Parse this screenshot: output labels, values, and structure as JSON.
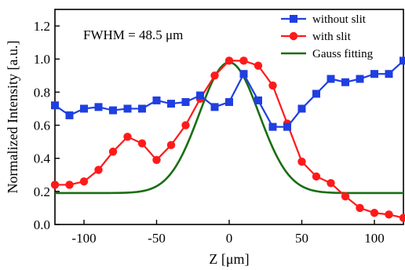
{
  "chart_data": {
    "type": "line",
    "xlabel": "Z [μm]",
    "ylabel": "Normalized Intensity [a.u.]",
    "xlim": [
      -120,
      120
    ],
    "ylim": [
      0.0,
      1.3
    ],
    "x_ticks": [
      -100,
      -50,
      0,
      50,
      100
    ],
    "x_tick_labels": [
      "-100",
      "-50",
      "0",
      "50",
      "100"
    ],
    "y_ticks": [
      0.0,
      0.2,
      0.4,
      0.6,
      0.8,
      1.0,
      1.2
    ],
    "y_tick_labels": [
      "0.0",
      "0.2",
      "0.4",
      "0.6",
      "0.8",
      "1.0",
      "1.2"
    ],
    "grid": false,
    "legend_position": "top-right",
    "annotation": "FWHM = 48.5 μm",
    "series": [
      {
        "name": "without slit",
        "color": "#1f3fe0",
        "marker": "square",
        "x": [
          -120,
          -110,
          -100,
          -90,
          -80,
          -70,
          -60,
          -50,
          -40,
          -30,
          -20,
          -10,
          0,
          10,
          20,
          30,
          40,
          50,
          60,
          70,
          80,
          90,
          100,
          110,
          120
        ],
        "y": [
          0.72,
          0.66,
          0.7,
          0.71,
          0.69,
          0.7,
          0.7,
          0.75,
          0.73,
          0.74,
          0.78,
          0.71,
          0.74,
          0.91,
          0.75,
          0.59,
          0.59,
          0.7,
          0.79,
          0.88,
          0.86,
          0.88,
          0.91,
          0.91,
          0.99
        ]
      },
      {
        "name": "with slit",
        "color": "#ff1a1a",
        "marker": "circle",
        "x": [
          -120,
          -110,
          -100,
          -90,
          -80,
          -70,
          -60,
          -50,
          -40,
          -30,
          -20,
          -10,
          0,
          10,
          20,
          30,
          40,
          50,
          60,
          70,
          80,
          90,
          100,
          110,
          120
        ],
        "y": [
          0.24,
          0.24,
          0.26,
          0.33,
          0.44,
          0.53,
          0.49,
          0.39,
          0.48,
          0.6,
          0.76,
          0.9,
          0.99,
          0.99,
          0.96,
          0.84,
          0.61,
          0.38,
          0.29,
          0.25,
          0.17,
          0.1,
          0.07,
          0.06,
          0.04
        ]
      },
      {
        "name": "Gauss fitting",
        "color": "#1a6e12",
        "marker": "none",
        "fit": {
          "baseline": 0.19,
          "amplitude": 0.79,
          "center": 0.0,
          "fwhm": 48.5,
          "range": [
            -120,
            120
          ]
        }
      }
    ]
  }
}
